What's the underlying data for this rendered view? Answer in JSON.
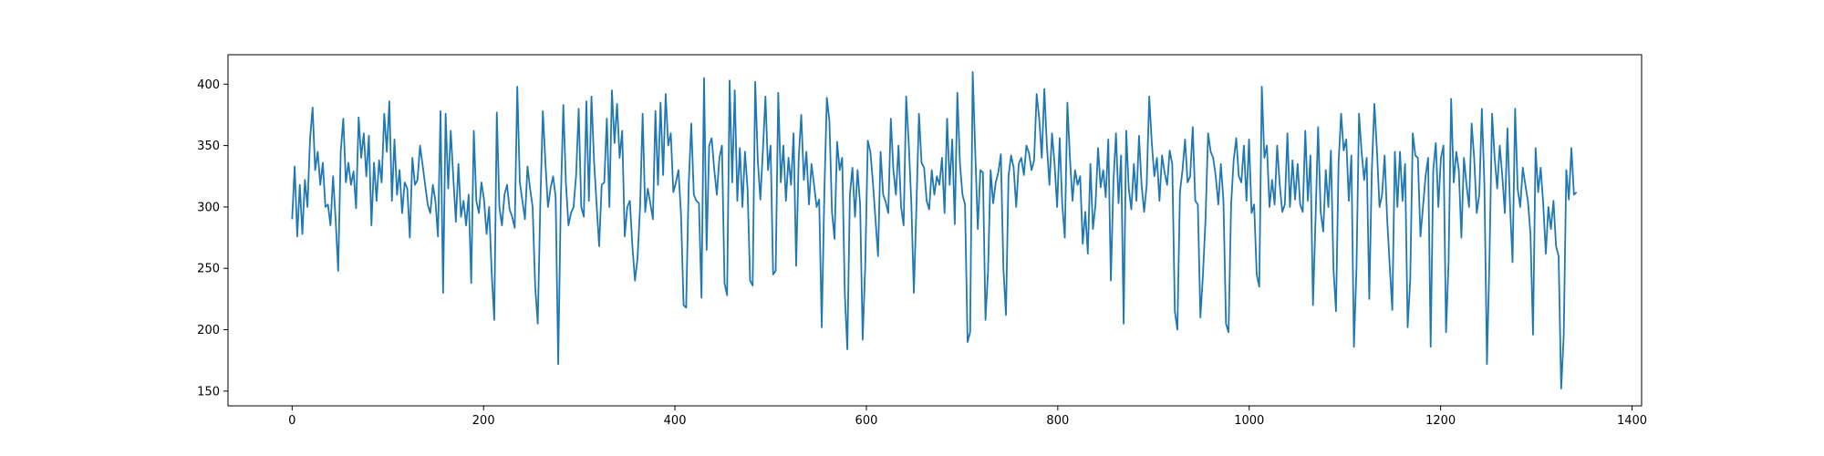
{
  "chart_data": {
    "type": "line",
    "title": "",
    "xlabel": "",
    "ylabel": "",
    "xlim": [
      -67,
      1410
    ],
    "ylim": [
      138,
      424
    ],
    "x_ticks": [
      0,
      200,
      400,
      600,
      800,
      1000,
      1200,
      1400
    ],
    "y_ticks": [
      150,
      200,
      250,
      300,
      350,
      400
    ],
    "x_tick_labels": [
      "0",
      "200",
      "400",
      "600",
      "800",
      "1000",
      "1200",
      "1400"
    ],
    "y_tick_labels": [
      "150",
      "200",
      "250",
      "300",
      "350",
      "400"
    ],
    "grid": false,
    "legend": "none",
    "x_start": 0,
    "x_end": 1342,
    "series": [
      {
        "color": "#1f77b4",
        "values": [
          290,
          333,
          276,
          318,
          278,
          322,
          300,
          355,
          381,
          330,
          345,
          318,
          336,
          300,
          302,
          285,
          325,
          290,
          248,
          345,
          372,
          320,
          336,
          318,
          329,
          299,
          373,
          340,
          360,
          325,
          358,
          285,
          336,
          305,
          338,
          320,
          376,
          345,
          386,
          305,
          355,
          310,
          330,
          295,
          320,
          315,
          275,
          340,
          318,
          322,
          350,
          334,
          318,
          302,
          295,
          318,
          305,
          276,
          378,
          230,
          376,
          315,
          362,
          324,
          288,
          335,
          292,
          305,
          285,
          310,
          238,
          362,
          305,
          295,
          320,
          306,
          278,
          300,
          246,
          208,
          377,
          300,
          285,
          310,
          318,
          298,
          292,
          283,
          398,
          320,
          305,
          290,
          333,
          315,
          300,
          235,
          205,
          302,
          378,
          336,
          300,
          315,
          325,
          308,
          172,
          304,
          383,
          320,
          285,
          295,
          300,
          326,
          380,
          300,
          292,
          386,
          305,
          390,
          338,
          302,
          268,
          318,
          320,
          372,
          300,
          395,
          352,
          384,
          340,
          362,
          276,
          300,
          305,
          268,
          240,
          258,
          300,
          376,
          296,
          315,
          303,
          290,
          378,
          318,
          385,
          326,
          392,
          350,
          360,
          312,
          320,
          330,
          294,
          220,
          218,
          318,
          368,
          310,
          305,
          303,
          226,
          405,
          265,
          350,
          356,
          330,
          310,
          340,
          350,
          238,
          228,
          403,
          320,
          395,
          305,
          348,
          300,
          345,
          315,
          240,
          236,
          402,
          338,
          306,
          346,
          390,
          330,
          350,
          245,
          248,
          393,
          320,
          350,
          305,
          340,
          318,
          360,
          252,
          340,
          375,
          322,
          345,
          302,
          335,
          318,
          300,
          306,
          202,
          310,
          389,
          370,
          296,
          274,
          353,
          330,
          340,
          230,
          184,
          310,
          332,
          292,
          330,
          302,
          192,
          252,
          354,
          345,
          320,
          290,
          260,
          345,
          310,
          304,
          295,
          372,
          330,
          310,
          350,
          300,
          285,
          390,
          352,
          304,
          230,
          300,
          376,
          336,
          332,
          305,
          298,
          330,
          310,
          325,
          318,
          340,
          295,
          372,
          318,
          355,
          286,
          393,
          336,
          310,
          302,
          190,
          198,
          410,
          345,
          282,
          330,
          328,
          208,
          248,
          330,
          303,
          320,
          328,
          343,
          250,
          212,
          325,
          342,
          332,
          300,
          335,
          340,
          326,
          350,
          344,
          330,
          338,
          392,
          372,
          340,
          396,
          350,
          318,
          360,
          335,
          300,
          356,
          302,
          275,
          385,
          340,
          305,
          330,
          318,
          325,
          270,
          296,
          262,
          335,
          282,
          302,
          348,
          316,
          330,
          308,
          355,
          240,
          320,
          360,
          303,
          342,
          205,
          362,
          315,
          298,
          335,
          305,
          358,
          318,
          296,
          318,
          390,
          352,
          325,
          340,
          305,
          342,
          328,
          318,
          346,
          335,
          215,
          200,
          312,
          330,
          355,
          320,
          325,
          365,
          305,
          302,
          210,
          245,
          290,
          360,
          345,
          340,
          325,
          302,
          335,
          305,
          205,
          198,
          302,
          338,
          356,
          325,
          320,
          350,
          305,
          355,
          295,
          302,
          245,
          235,
          398,
          340,
          350,
          300,
          322,
          302,
          350,
          318,
          296,
          302,
          360,
          300,
          338,
          306,
          335,
          302,
          296,
          362,
          305,
          342,
          220,
          290,
          365,
          296,
          280,
          330,
          300,
          346,
          250,
          215,
          336,
          376,
          346,
          355,
          305,
          342,
          186,
          250,
          376,
          345,
          322,
          340,
          225,
          330,
          384,
          346,
          300,
          310,
          342,
          290,
          252,
          216,
          345,
          300,
          345,
          305,
          335,
          202,
          240,
          360,
          342,
          340,
          276,
          300,
          325,
          340,
          186,
          330,
          352,
          300,
          340,
          350,
          198,
          255,
          388,
          320,
          345,
          330,
          275,
          340,
          318,
          300,
          368,
          340,
          295,
          310,
          380,
          318,
          172,
          260,
          376,
          340,
          315,
          350,
          325,
          295,
          364,
          302,
          255,
          380,
          315,
          300,
          332,
          318,
          305,
          278,
          196,
          348,
          312,
          332,
          302,
          262,
          300,
          282,
          305,
          268,
          260,
          152,
          195,
          330,
          306,
          348,
          310,
          312
        ]
      }
    ]
  }
}
